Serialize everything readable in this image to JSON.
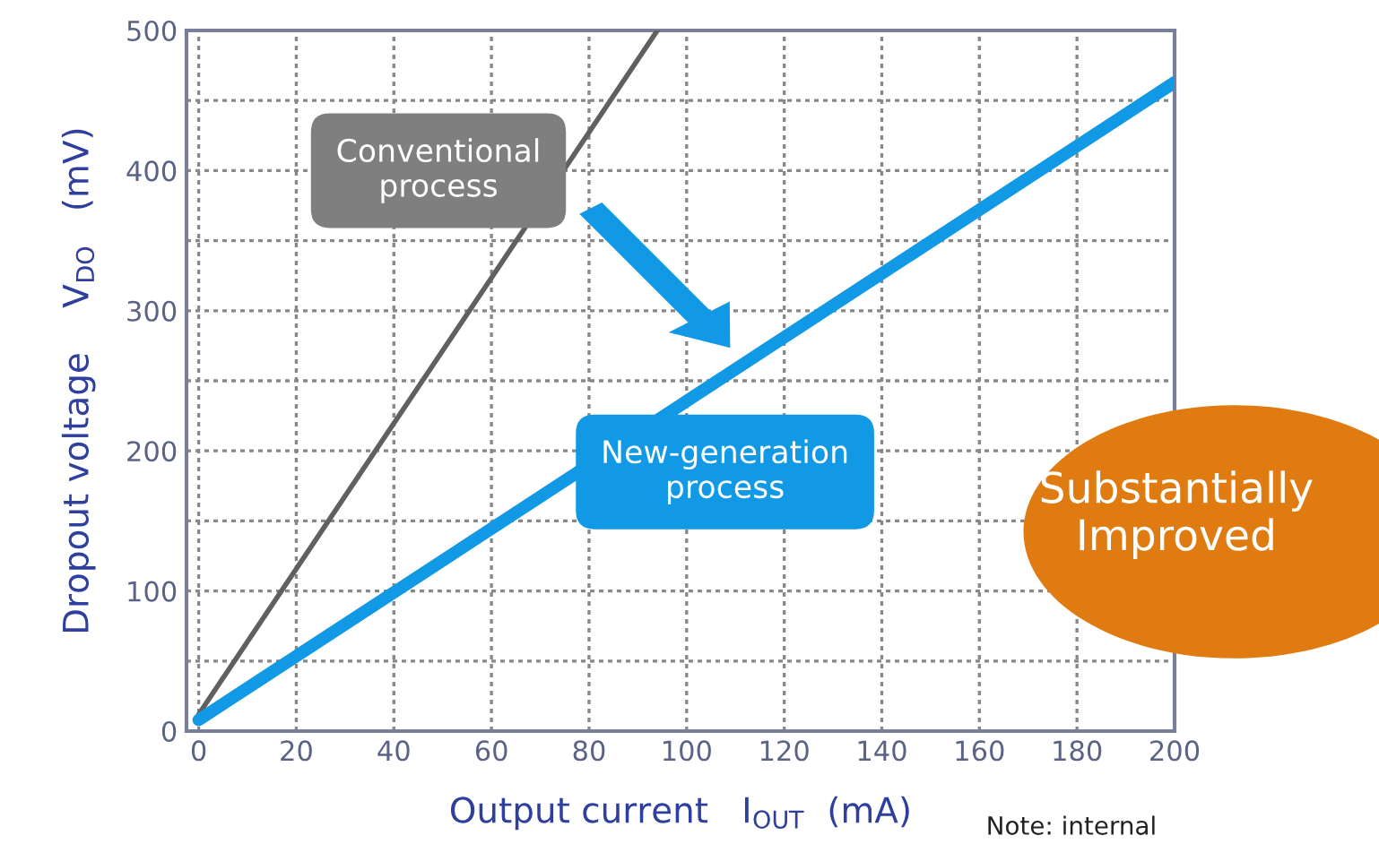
{
  "chart_data": {
    "type": "line",
    "xlabel": "Output current   I$_{OUT}$  (mA)",
    "ylabel": "Dropout voltage    V$_{DO}$   (mV)",
    "xlim": [
      -2.5,
      200
    ],
    "xticks": [
      0,
      20,
      40,
      60,
      80,
      100,
      120,
      140,
      160,
      180,
      200
    ],
    "ylim": [
      0,
      500
    ],
    "yticks": [
      0,
      {
        "value": 50,
        "label": null
      },
      100,
      {
        "value": 150,
        "label": null
      },
      200,
      {
        "value": 250,
        "label": null
      },
      300,
      {
        "value": 350,
        "label": null
      },
      400,
      {
        "value": 450,
        "label": null
      },
      500
    ],
    "grid": true,
    "line_style": "solid",
    "series": [
      {
        "name": "Conventional\nprocess",
        "color": "#606060",
        "x": [
          0,
          94
        ],
        "values": [
          12,
          500
        ]
      },
      {
        "name": "New-generation\nprocess",
        "color": "#1199e6",
        "x": [
          0,
          200
        ],
        "values": [
          8,
          463
        ]
      }
    ],
    "annotations": [
      "Substantially\nImproved",
      "Note: internal"
    ]
  }
}
